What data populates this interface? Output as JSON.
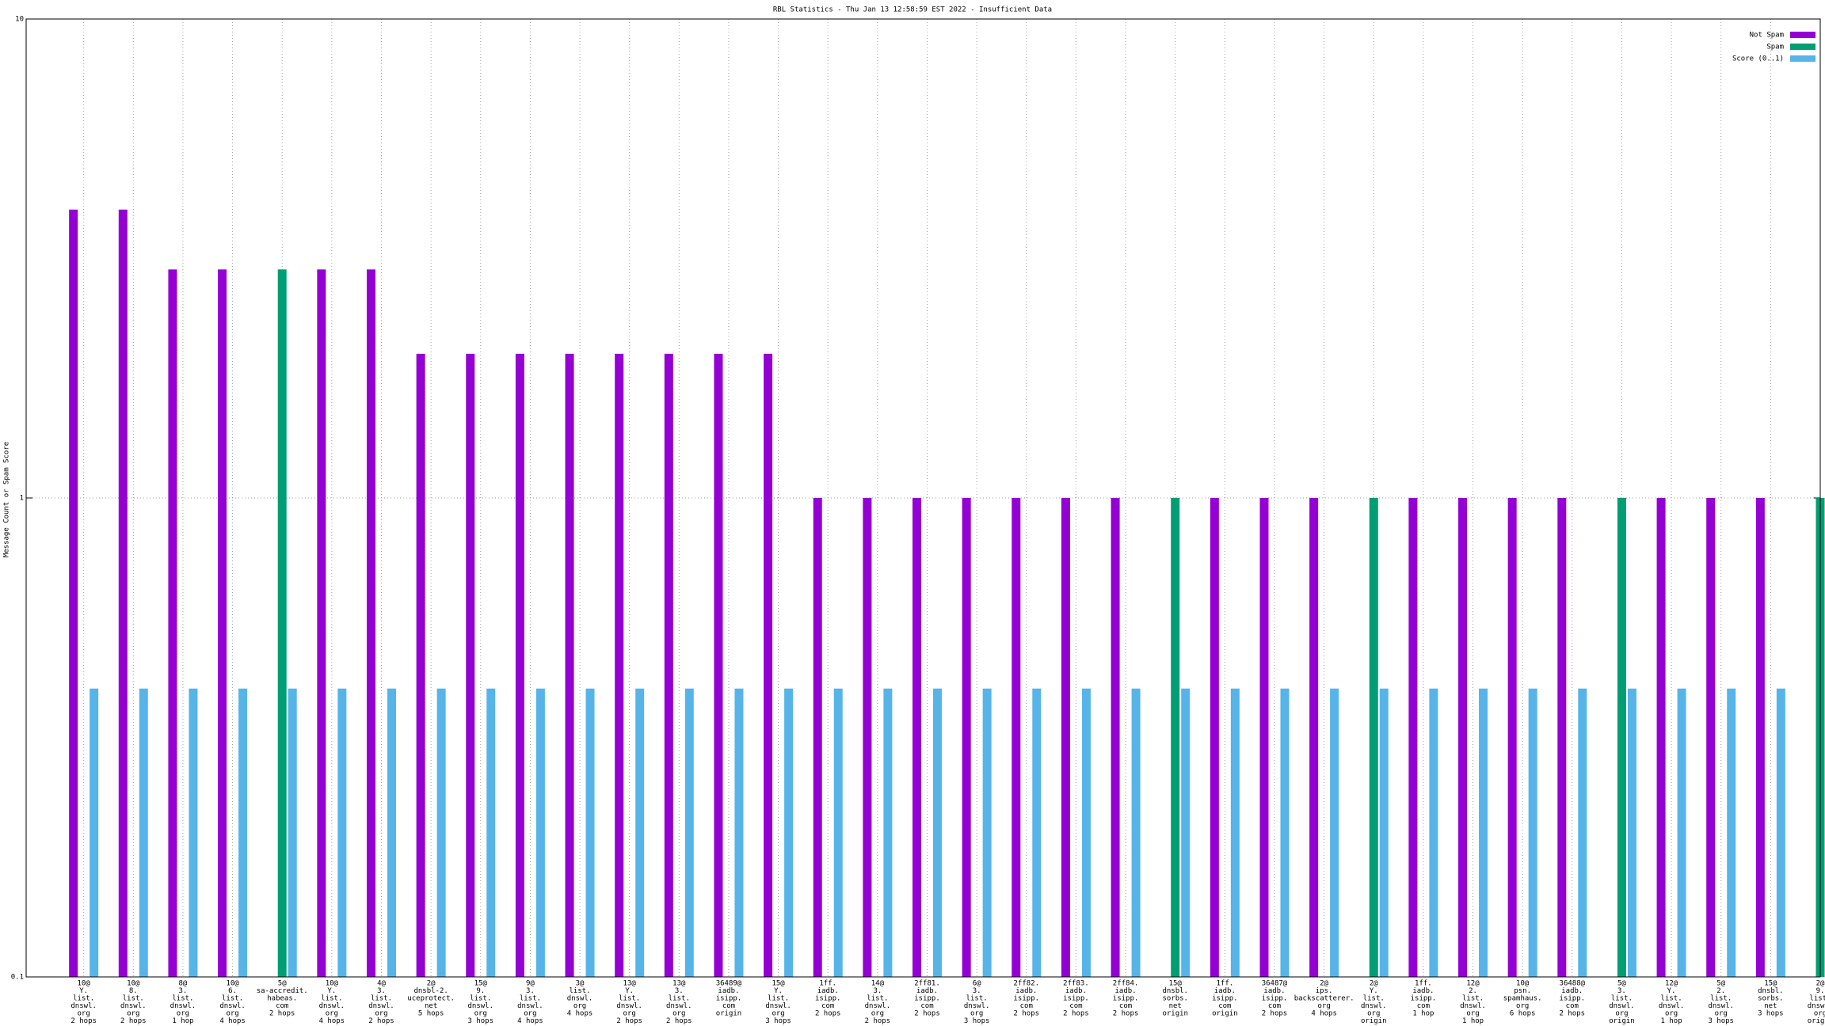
{
  "chart_data": {
    "type": "bar",
    "title": "RBL Statistics - Thu Jan 13 12:58:59 EST 2022 - Insufficient Data",
    "y_label": "Message Count or Spam Score",
    "log_scale": true,
    "grid": true,
    "legend": "top-right",
    "ylim": [
      0.1,
      10
    ],
    "yticks": [
      0.1,
      1,
      10
    ],
    "categories": [
      [
        "10@",
        "Y.",
        "list.",
        "dnswl.",
        "org",
        "2 hops"
      ],
      [
        "10@",
        "8.",
        "list.",
        "dnswl.",
        "org",
        "2 hops"
      ],
      [
        "8@",
        "3.",
        "list.",
        "dnswl.",
        "org",
        "1 hop"
      ],
      [
        "10@",
        "6.",
        "list.",
        "dnswl.",
        "org",
        "4 hops"
      ],
      [
        "5@",
        "sa-accredit.",
        "habeas.",
        "com",
        "2 hops"
      ],
      [
        "10@",
        "Y.",
        "list.",
        "dnswl.",
        "org",
        "4 hops"
      ],
      [
        "4@",
        "3.",
        "list.",
        "dnswl.",
        "org",
        "2 hops"
      ],
      [
        "2@",
        "dnsbl-2.",
        "uceprotect.",
        "net",
        "5 hops"
      ],
      [
        "15@",
        "9.",
        "list.",
        "dnswl.",
        "org",
        "3 hops"
      ],
      [
        "9@",
        "3.",
        "list.",
        "dnswl.",
        "org",
        "4 hops"
      ],
      [
        "3@",
        "list.",
        "dnswl.",
        "org",
        "4 hops"
      ],
      [
        "13@",
        "Y.",
        "list.",
        "dnswl.",
        "org",
        "2 hops"
      ],
      [
        "13@",
        "3.",
        "list.",
        "dnswl.",
        "org",
        "2 hops"
      ],
      [
        "36489@",
        "iadb.",
        "isipp.",
        "com",
        "origin"
      ],
      [
        "15@",
        "Y.",
        "list.",
        "dnswl.",
        "org",
        "3 hops"
      ],
      [
        "1ff.",
        "iadb.",
        "isipp.",
        "com",
        "2 hops"
      ],
      [
        "14@",
        "3.",
        "list.",
        "dnswl.",
        "org",
        "2 hops"
      ],
      [
        "2ff81.",
        "iadb.",
        "isipp.",
        "com",
        "2 hops"
      ],
      [
        "6@",
        "3.",
        "list.",
        "dnswl.",
        "org",
        "3 hops"
      ],
      [
        "2ff82.",
        "iadb.",
        "isipp.",
        "com",
        "2 hops"
      ],
      [
        "2ff83.",
        "iadb.",
        "isipp.",
        "com",
        "2 hops"
      ],
      [
        "2ff84.",
        "iadb.",
        "isipp.",
        "com",
        "2 hops"
      ],
      [
        "15@",
        "dnsbl.",
        "sorbs.",
        "net",
        "origin"
      ],
      [
        "1ff.",
        "iadb.",
        "isipp.",
        "com",
        "origin"
      ],
      [
        "36487@",
        "iadb.",
        "isipp.",
        "com",
        "2 hops"
      ],
      [
        "2@",
        "ips.",
        "backscatterer.",
        "org",
        "4 hops"
      ],
      [
        "2@",
        "Y.",
        "list.",
        "dnswl.",
        "org",
        "origin"
      ],
      [
        "1ff.",
        "iadb.",
        "isipp.",
        "com",
        "1 hop"
      ],
      [
        "12@",
        "2.",
        "list.",
        "dnswl.",
        "org",
        "1 hop"
      ],
      [
        "10@",
        "psn.",
        "spamhaus.",
        "org",
        "6 hops"
      ],
      [
        "36488@",
        "iadb.",
        "isipp.",
        "com",
        "2 hops"
      ],
      [
        "5@",
        "3.",
        "list.",
        "dnswl.",
        "org",
        "origin"
      ],
      [
        "12@",
        "Y.",
        "list.",
        "dnswl.",
        "org",
        "1 hop"
      ],
      [
        "5@",
        "2.",
        "list.",
        "dnswl.",
        "org",
        "3 hops"
      ],
      [
        "15@",
        "dnsbl.",
        "sorbs.",
        "net",
        "3 hops"
      ],
      [
        "2@",
        "9.",
        "list.",
        "dnswl.",
        "org",
        "origin"
      ]
    ],
    "series": [
      {
        "name": "Not Spam",
        "color": "#9400d3",
        "values": [
          4,
          4,
          3,
          3,
          null,
          3,
          3,
          2,
          2,
          2,
          2,
          2,
          2,
          2,
          2,
          1,
          1,
          1,
          1,
          1,
          1,
          1,
          null,
          1,
          1,
          1,
          null,
          1,
          1,
          1,
          1,
          null,
          1,
          1,
          1,
          null
        ]
      },
      {
        "name": "Spam",
        "color": "#009e73",
        "values": [
          null,
          null,
          null,
          null,
          3,
          null,
          null,
          null,
          null,
          null,
          null,
          null,
          null,
          null,
          null,
          null,
          null,
          null,
          null,
          null,
          null,
          null,
          1,
          null,
          null,
          null,
          1,
          null,
          null,
          null,
          null,
          1,
          null,
          null,
          null,
          1
        ]
      },
      {
        "name": "Score (0..1)",
        "color": "#56b4e9",
        "values": [
          0.4,
          0.4,
          0.4,
          0.4,
          0.4,
          0.4,
          0.4,
          0.4,
          0.4,
          0.4,
          0.4,
          0.4,
          0.4,
          0.4,
          0.4,
          0.4,
          0.4,
          0.4,
          0.4,
          0.4,
          0.4,
          0.4,
          0.4,
          0.4,
          0.4,
          0.4,
          0.4,
          0.4,
          0.4,
          0.4,
          0.4,
          0.4,
          0.4,
          0.4,
          0.4,
          0.4
        ]
      }
    ]
  }
}
